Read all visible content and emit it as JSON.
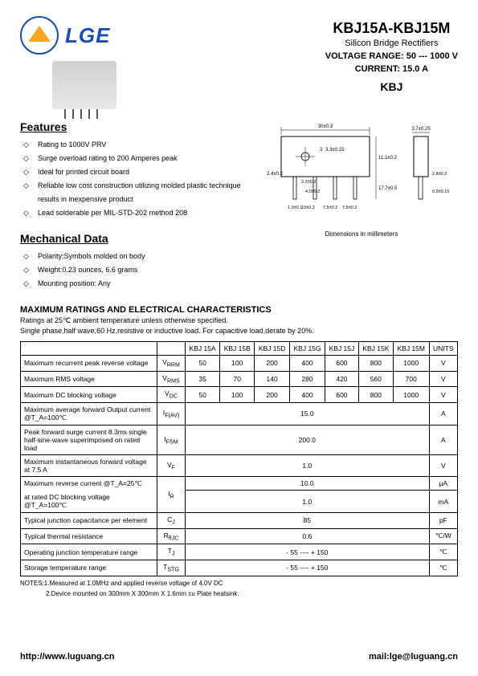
{
  "brand": "LGE",
  "header": {
    "part_title": "KBJ15A-KBJ15M",
    "subtitle": "Silicon Bridge Rectifiers",
    "voltage_label": "VOLTAGE  RANGE:",
    "voltage_value": "50 --- 1000 V",
    "current_label": "CURRENT:",
    "current_value": "15.0 A",
    "series": "KBJ"
  },
  "features": {
    "heading": "Features",
    "items": [
      "Rating to 1000V PRV",
      "Surge overload rating to 200 Amperes peak",
      "Ideal for printed circuit board",
      "Reliable low cost construction utilizing molded plastic technique results in inexpensive product",
      "Lead solderable per MIL-STD-202 method 208"
    ]
  },
  "mechanical": {
    "heading": "Mechanical Data",
    "items": [
      "Polarity:Symbols molded on body",
      "Weight:0.23 ounces, 6.6 grams",
      "Mounting position: Any"
    ],
    "dim_note": "Dimensions in millimeters",
    "dims": {
      "body_w": "30±0.3",
      "hole": "3.3±0.15",
      "lead_len": "17.7±0.5",
      "body_h": "11.1±0.2",
      "lead_w": "0.9±0.15",
      "thick": "3.7±0.25",
      "pin_pitch": "7.5±0.2",
      "edge": "2.4±0.2",
      "pin_inner": "2.2±0.2",
      "pin_w": "1.0±0.1",
      "pin_t": "2.8±0.2",
      "pin_ext": "4.0±0.2",
      "total_pitch": "10±0.2"
    }
  },
  "ratings": {
    "heading": "MAXIMUM RATINGS AND ELECTRICAL CHARACTERISTICS",
    "sub1": "Ratings at 25℃ ambient temperature unless otherwise specified.",
    "sub2": "Single phase,half wave,60 Hz,resistive or inductive load. For capacitive load,derate by 20%.",
    "columns": [
      "KBJ 15A",
      "KBJ 15B",
      "KBJ 15D",
      "KBJ 15G",
      "KBJ 15J",
      "KBJ 15K",
      "KBJ 15M"
    ],
    "units_head": "UNITS",
    "rows": [
      {
        "label": "Maximum recurrent peak reverse voltage",
        "sym": "V",
        "sub": "RRM",
        "vals": [
          "50",
          "100",
          "200",
          "400",
          "600",
          "800",
          "1000"
        ],
        "unit": "V"
      },
      {
        "label": "Maximum RMS voltage",
        "sym": "V",
        "sub": "RMS",
        "vals": [
          "35",
          "70",
          "140",
          "280",
          "420",
          "560",
          "700"
        ],
        "unit": "V"
      },
      {
        "label": "Maximum DC blocking voltage",
        "sym": "V",
        "sub": "DC",
        "vals": [
          "50",
          "100",
          "200",
          "400",
          "600",
          "800",
          "1000"
        ],
        "unit": "V"
      },
      {
        "label": "Maximum average forward Output current    @T_A=100℃",
        "sym": "I",
        "sub": "F(AV)",
        "span": "15.0",
        "unit": "A"
      },
      {
        "label": "Peak forward surge current 8.3ms single half-sine-wave superimposed on rated load",
        "sym": "I",
        "sub": "FSM",
        "span": "200.0",
        "unit": "A"
      },
      {
        "label": "Maximum instantaneous forward voltage at 7.5 A",
        "sym": "V",
        "sub": "F",
        "span": "1.0",
        "unit": "V"
      }
    ],
    "ir_row": {
      "label1": "Maximum reverse current         @T_A=25℃",
      "label2": "at rated DC blocking voltage   @T_A=100℃",
      "sym": "I",
      "sub": "R",
      "v1": "10.0",
      "v2": "1.0",
      "u1": "μA",
      "u2": "mA"
    },
    "rows2": [
      {
        "label": "Typical junction capacitance per element",
        "sym": "C",
        "sub": "J",
        "span": "85",
        "unit": "pF"
      },
      {
        "label": "Typical thermal resistance",
        "sym": "R",
        "sub": "θJC",
        "span": "0.6",
        "unit": "℃/W"
      },
      {
        "label": "Operating junction temperature range",
        "sym": "T",
        "sub": "J",
        "span": "- 55 ---- + 150",
        "unit": "℃"
      },
      {
        "label": "Storage temperature range",
        "sym": "T",
        "sub": "STG",
        "span": "- 55 ---- + 150",
        "unit": "℃"
      }
    ],
    "notes": [
      "NOTES:1.Measured at 1.0MHz and applied reverse voltage of 4.0V DC",
      "2.Device mounted on 300mm X 300mm X 1.6mm cu Plate heatsink."
    ]
  },
  "footer": {
    "url": "http://www.luguang.cn",
    "mail": "mail:lge@luguang.cn"
  }
}
